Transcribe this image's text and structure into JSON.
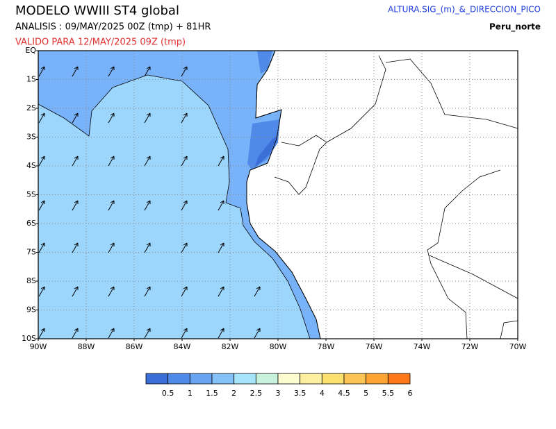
{
  "header": {
    "title": "MODELO  WWIII ST4 global",
    "analysis": "ANALISIS : 09/MAY/2025 00Z  (tmp) + 81HR",
    "valid": "VALIDO PARA  12/MAY/2025 09Z  (tmp)",
    "variable": "ALTURA.SIG_(m)_&_DIRECCION_PICO",
    "region": "Peru_norte"
  },
  "axes": {
    "lat_labels": [
      "EQ",
      "1S",
      "2S",
      "3S",
      "4S",
      "5S",
      "6S",
      "7S",
      "8S",
      "9S",
      "10S"
    ],
    "lon_labels": [
      "90W",
      "88W",
      "86W",
      "84W",
      "82W",
      "80W",
      "78W",
      "76W",
      "74W",
      "72W",
      "70W"
    ]
  },
  "colorbar": {
    "colors": [
      "#3c6ed8",
      "#4f8ae8",
      "#68a4f2",
      "#86c2fa",
      "#a6e4fc",
      "#c8f2dc",
      "#fcfcd0",
      "#fcf0a0",
      "#fce070",
      "#fcc454",
      "#fca434",
      "#fc7818"
    ],
    "labels": [
      "0.5",
      "1",
      "1.5",
      "2",
      "2.5",
      "3",
      "3.5",
      "4",
      "4.5",
      "5",
      "5.5",
      "6"
    ]
  }
}
